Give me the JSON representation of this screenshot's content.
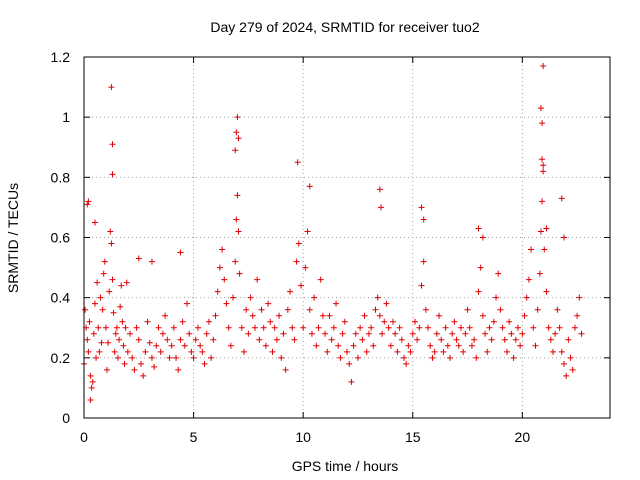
{
  "chart_data": {
    "type": "scatter",
    "title": "Day 279 of 2024, SRMTID for receiver tuo2",
    "xlabel": "GPS time / hours",
    "ylabel": "SRMTID / TECUs",
    "xlim": [
      0,
      24
    ],
    "ylim": [
      0,
      1.2
    ],
    "xticks": [
      0,
      5,
      10,
      15,
      20
    ],
    "xtick_labels": [
      "0",
      "5",
      "10",
      "15",
      "20"
    ],
    "yticks": [
      0,
      0.2,
      0.4,
      0.6,
      0.8,
      1.0,
      1.2
    ],
    "ytick_labels": [
      "0",
      "0.2",
      "0.4",
      "0.6",
      "0.8",
      "1",
      "1.2"
    ],
    "grid": true,
    "marker": "+",
    "series": [
      {
        "name": "SRMTID",
        "color": "#e00000",
        "x": [
          0.0,
          0.05,
          0.1,
          0.15,
          0.2,
          0.25,
          0.3,
          0.35,
          0.4,
          0.45,
          0.5,
          0.55,
          0.6,
          0.65,
          0.7,
          0.75,
          0.8,
          0.85,
          0.9,
          0.95,
          1.0,
          1.05,
          1.1,
          1.15,
          1.2,
          1.25,
          1.3,
          1.35,
          1.4,
          1.45,
          1.5,
          1.55,
          1.6,
          1.65,
          1.7,
          1.75,
          1.8,
          1.85,
          1.9,
          1.95,
          2.0,
          2.1,
          2.2,
          2.3,
          2.4,
          2.5,
          2.6,
          2.7,
          2.8,
          2.9,
          3.0,
          3.1,
          3.2,
          3.3,
          3.4,
          3.5,
          3.6,
          3.7,
          3.8,
          3.9,
          4.0,
          4.1,
          4.2,
          4.3,
          4.4,
          4.5,
          4.6,
          4.7,
          4.8,
          4.9,
          5.0,
          5.1,
          5.2,
          5.3,
          5.4,
          5.5,
          5.6,
          5.7,
          5.8,
          5.9,
          6.0,
          6.1,
          6.2,
          6.3,
          6.4,
          6.5,
          6.6,
          6.7,
          6.8,
          6.9,
          6.95,
          7.0,
          7.05,
          7.1,
          7.2,
          7.3,
          7.4,
          7.5,
          7.6,
          7.7,
          7.8,
          7.9,
          8.0,
          8.1,
          8.2,
          8.3,
          8.4,
          8.5,
          8.6,
          8.7,
          8.8,
          8.9,
          9.0,
          9.1,
          9.2,
          9.3,
          9.4,
          9.5,
          9.6,
          9.7,
          9.8,
          9.9,
          10.0,
          10.1,
          10.2,
          10.3,
          10.4,
          10.5,
          10.6,
          10.7,
          10.8,
          10.9,
          11.0,
          11.1,
          11.2,
          11.3,
          11.4,
          11.5,
          11.6,
          11.7,
          11.8,
          11.9,
          12.0,
          12.1,
          12.2,
          12.3,
          12.4,
          12.5,
          12.6,
          12.7,
          12.8,
          12.9,
          13.0,
          13.1,
          13.2,
          13.3,
          13.4,
          13.5,
          13.6,
          13.7,
          13.8,
          13.9,
          14.0,
          14.1,
          14.2,
          14.3,
          14.4,
          14.5,
          14.6,
          14.7,
          14.8,
          14.9,
          15.0,
          15.1,
          15.2,
          15.3,
          15.4,
          15.5,
          15.6,
          15.7,
          15.8,
          15.9,
          16.0,
          16.1,
          16.2,
          16.3,
          16.4,
          16.5,
          16.6,
          16.7,
          16.8,
          16.9,
          17.0,
          17.1,
          17.2,
          17.3,
          17.4,
          17.5,
          17.6,
          17.7,
          17.8,
          17.9,
          18.0,
          18.1,
          18.2,
          18.3,
          18.4,
          18.5,
          18.6,
          18.7,
          18.8,
          18.9,
          19.0,
          19.1,
          19.2,
          19.3,
          19.4,
          19.5,
          19.6,
          19.7,
          19.8,
          19.9,
          20.0,
          20.1,
          20.2,
          20.3,
          20.4,
          20.5,
          20.6,
          20.7,
          20.8,
          20.85,
          20.9,
          20.95,
          21.0,
          21.1,
          21.2,
          21.3,
          21.4,
          21.5,
          21.6,
          21.7,
          21.8,
          21.9,
          22.0,
          22.1,
          22.2,
          22.3,
          22.4,
          22.5,
          22.6,
          22.7,
          1.25,
          1.3,
          1.3,
          0.15,
          0.2,
          6.9,
          6.95,
          7.0,
          7.05,
          9.75,
          10.3,
          13.5,
          13.55,
          15.4,
          15.5,
          20.85,
          20.9,
          20.95,
          20.9,
          20.95,
          21.1,
          21.8,
          21.9,
          18.0,
          18.2,
          2.5,
          3.1,
          4.4,
          0.5,
          0.3
        ],
        "y": [
          0.18,
          0.36,
          0.3,
          0.26,
          0.22,
          0.32,
          0.14,
          0.1,
          0.12,
          0.28,
          0.38,
          0.2,
          0.45,
          0.3,
          0.22,
          0.4,
          0.25,
          0.36,
          0.48,
          0.52,
          0.3,
          0.16,
          0.25,
          0.42,
          0.62,
          0.58,
          0.46,
          0.35,
          0.22,
          0.28,
          0.3,
          0.2,
          0.26,
          0.37,
          0.44,
          0.32,
          0.24,
          0.18,
          0.3,
          0.45,
          0.22,
          0.28,
          0.2,
          0.16,
          0.3,
          0.26,
          0.18,
          0.14,
          0.22,
          0.32,
          0.25,
          0.2,
          0.17,
          0.24,
          0.3,
          0.22,
          0.28,
          0.34,
          0.26,
          0.2,
          0.24,
          0.3,
          0.2,
          0.16,
          0.26,
          0.32,
          0.24,
          0.38,
          0.28,
          0.22,
          0.2,
          0.26,
          0.3,
          0.24,
          0.22,
          0.18,
          0.28,
          0.32,
          0.2,
          0.26,
          0.34,
          0.42,
          0.5,
          0.56,
          0.46,
          0.38,
          0.3,
          0.24,
          0.4,
          0.52,
          0.66,
          0.74,
          0.62,
          0.48,
          0.3,
          0.22,
          0.36,
          0.28,
          0.4,
          0.34,
          0.3,
          0.46,
          0.26,
          0.36,
          0.3,
          0.24,
          0.38,
          0.32,
          0.22,
          0.3,
          0.26,
          0.34,
          0.2,
          0.28,
          0.16,
          0.36,
          0.42,
          0.3,
          0.26,
          0.52,
          0.58,
          0.44,
          0.3,
          0.5,
          0.62,
          0.36,
          0.28,
          0.4,
          0.24,
          0.3,
          0.46,
          0.34,
          0.28,
          0.22,
          0.34,
          0.26,
          0.3,
          0.38,
          0.24,
          0.2,
          0.28,
          0.32,
          0.22,
          0.18,
          0.12,
          0.24,
          0.28,
          0.2,
          0.3,
          0.26,
          0.34,
          0.22,
          0.28,
          0.3,
          0.24,
          0.36,
          0.4,
          0.34,
          0.28,
          0.32,
          0.38,
          0.3,
          0.24,
          0.32,
          0.28,
          0.22,
          0.3,
          0.26,
          0.2,
          0.18,
          0.24,
          0.22,
          0.28,
          0.32,
          0.26,
          0.3,
          0.44,
          0.52,
          0.36,
          0.3,
          0.24,
          0.2,
          0.22,
          0.28,
          0.34,
          0.26,
          0.22,
          0.3,
          0.24,
          0.2,
          0.28,
          0.32,
          0.26,
          0.24,
          0.3,
          0.22,
          0.28,
          0.36,
          0.3,
          0.24,
          0.26,
          0.2,
          0.42,
          0.5,
          0.34,
          0.28,
          0.22,
          0.3,
          0.26,
          0.32,
          0.4,
          0.48,
          0.36,
          0.3,
          0.26,
          0.22,
          0.32,
          0.28,
          0.2,
          0.26,
          0.3,
          0.24,
          0.28,
          0.34,
          0.4,
          0.46,
          0.56,
          0.3,
          0.24,
          0.36,
          0.48,
          0.62,
          0.72,
          0.84,
          0.56,
          0.42,
          0.3,
          0.26,
          0.22,
          0.28,
          0.36,
          0.3,
          0.22,
          0.18,
          0.14,
          0.26,
          0.2,
          0.16,
          0.3,
          0.34,
          0.4,
          0.28,
          1.1,
          0.91,
          0.81,
          0.71,
          0.72,
          0.89,
          0.95,
          1.0,
          0.93,
          0.85,
          0.77,
          0.76,
          0.7,
          0.7,
          0.66,
          1.03,
          0.98,
          1.17,
          0.86,
          0.82,
          0.63,
          0.73,
          0.6,
          0.63,
          0.6,
          0.53,
          0.52,
          0.55,
          0.65,
          0.06
        ]
      }
    ]
  }
}
